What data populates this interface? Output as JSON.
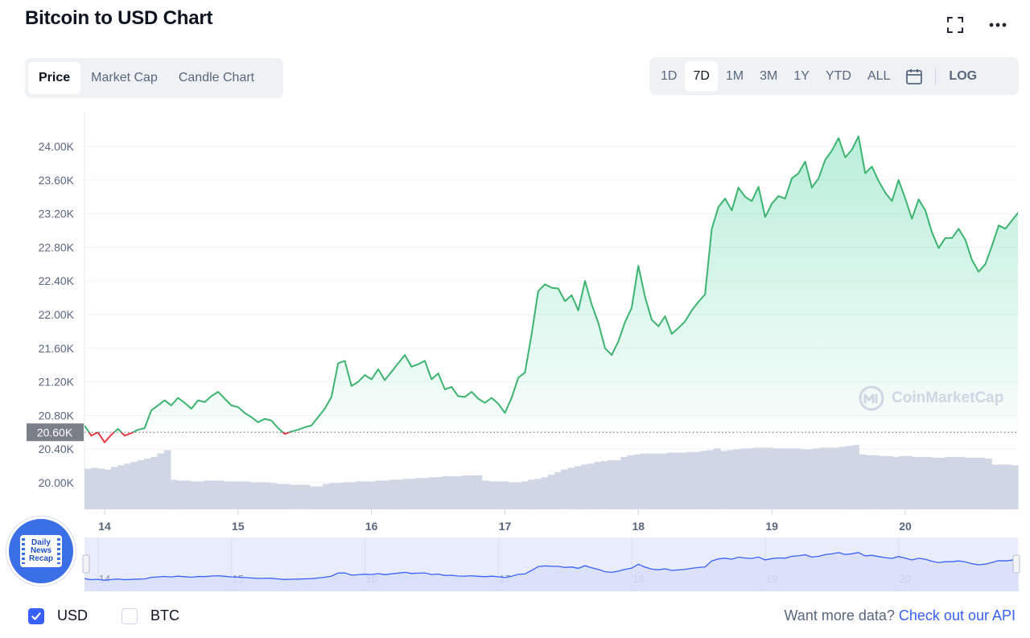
{
  "header": {
    "title": "Bitcoin to USD Chart"
  },
  "tabs": [
    {
      "label": "Price",
      "active": true
    },
    {
      "label": "Market Cap",
      "active": false
    },
    {
      "label": "Candle Chart",
      "active": false
    }
  ],
  "ranges": [
    {
      "label": "1D",
      "active": false
    },
    {
      "label": "7D",
      "active": true
    },
    {
      "label": "1M",
      "active": false
    },
    {
      "label": "3M",
      "active": false
    },
    {
      "label": "1Y",
      "active": false
    },
    {
      "label": "YTD",
      "active": false
    },
    {
      "label": "ALL",
      "active": false
    }
  ],
  "log_label": "LOG",
  "watermark": "CoinMarketCap",
  "badge": {
    "lines": [
      "Daily",
      "News",
      "Recap"
    ]
  },
  "currency": [
    {
      "label": "USD",
      "checked": true
    },
    {
      "label": "BTC",
      "checked": false
    }
  ],
  "api": {
    "text": "Want more data?",
    "link": "Check out our API"
  },
  "colors": {
    "up": "#16c784",
    "up_line": "#3cb46e",
    "down": "#ea3943",
    "volume": "#cfd6e4",
    "navigator_line": "#3861fb",
    "navigator_fill": "#e8ecfb"
  },
  "chart_data": {
    "type": "line",
    "title": "Bitcoin to USD Chart",
    "xlabel": "",
    "ylabel": "",
    "x_ticks": [
      "14",
      "15",
      "16",
      "17",
      "18",
      "19",
      "20"
    ],
    "y_ticks": [
      "20.00K",
      "20.40K",
      "20.80K",
      "21.20K",
      "21.60K",
      "22.00K",
      "22.40K",
      "22.80K",
      "23.20K",
      "23.60K",
      "24.00K"
    ],
    "ylim": [
      19600,
      24400
    ],
    "xlim": [
      13.85,
      20.85
    ],
    "reference_price": 20600,
    "reference_label": "20.60K",
    "grid": true,
    "series": [
      {
        "type": "line",
        "x": [
          13.85,
          13.9,
          13.95,
          14.0,
          14.05,
          14.1,
          14.15,
          14.2,
          14.25,
          14.3,
          14.35,
          14.4,
          14.45,
          14.5,
          14.55,
          14.6,
          14.65,
          14.7,
          14.75,
          14.8,
          14.85,
          14.9,
          14.95,
          15.0,
          15.05,
          15.1,
          15.15,
          15.2,
          15.25,
          15.3,
          15.35,
          15.4,
          15.45,
          15.5,
          15.55,
          15.6,
          15.65,
          15.7,
          15.75,
          15.8,
          15.85,
          15.9,
          15.95,
          16.0,
          16.05,
          16.1,
          16.15,
          16.2,
          16.25,
          16.3,
          16.35,
          16.4,
          16.45,
          16.5,
          16.55,
          16.6,
          16.65,
          16.7,
          16.75,
          16.8,
          16.85,
          16.9,
          16.95,
          17.0,
          17.05,
          17.1,
          17.15,
          17.2,
          17.25,
          17.3,
          17.35,
          17.4,
          17.45,
          17.5,
          17.55,
          17.6,
          17.65,
          17.7,
          17.75,
          17.8,
          17.85,
          17.9,
          17.95,
          18.0,
          18.05,
          18.1,
          18.15,
          18.2,
          18.25,
          18.3,
          18.35,
          18.4,
          18.45,
          18.5,
          18.55,
          18.6,
          18.65,
          18.7,
          18.75,
          18.8,
          18.85,
          18.9,
          18.95,
          19.0,
          19.05,
          19.1,
          19.15,
          19.2,
          19.25,
          19.3,
          19.35,
          19.4,
          19.45,
          19.5,
          19.55,
          19.6,
          19.65,
          19.7,
          19.75,
          19.8,
          19.85,
          19.9,
          19.95,
          20.0,
          20.05,
          20.1,
          20.15,
          20.2,
          20.25,
          20.3,
          20.35,
          20.4,
          20.45,
          20.5,
          20.55,
          20.6,
          20.65,
          20.7,
          20.75,
          20.8,
          20.85
        ],
        "y": [
          20680,
          20560,
          20600,
          20480,
          20570,
          20640,
          20560,
          20590,
          20630,
          20650,
          20860,
          20920,
          20980,
          20920,
          21010,
          20950,
          20880,
          20980,
          20960,
          21030,
          21080,
          21000,
          20920,
          20900,
          20830,
          20780,
          20720,
          20760,
          20740,
          20650,
          20580,
          20610,
          20630,
          20660,
          20680,
          20780,
          20880,
          21020,
          21420,
          21450,
          21150,
          21200,
          21280,
          21230,
          21350,
          21220,
          21320,
          21420,
          21520,
          21380,
          21410,
          21450,
          21230,
          21300,
          21110,
          21140,
          21030,
          21020,
          21080,
          21000,
          20950,
          21010,
          20940,
          20830,
          21010,
          21250,
          21310,
          21770,
          22280,
          22360,
          22320,
          22310,
          22160,
          22230,
          22050,
          22400,
          22120,
          21900,
          21600,
          21520,
          21680,
          21910,
          22080,
          22580,
          22210,
          21940,
          21860,
          21980,
          21770,
          21840,
          21920,
          22050,
          22150,
          22240,
          23020,
          23280,
          23380,
          23240,
          23510,
          23400,
          23350,
          23520,
          23160,
          23320,
          23410,
          23380,
          23620,
          23680,
          23820,
          23510,
          23620,
          23840,
          23950,
          24100,
          23870,
          23960,
          24120,
          23680,
          23760,
          23590,
          23450,
          23350,
          23600,
          23380,
          23140,
          23370,
          23240,
          22980,
          22790,
          22910,
          22910,
          23020,
          22890,
          22650,
          22510,
          22600,
          22820,
          23060,
          23020,
          23120,
          23220
        ]
      }
    ],
    "volume": [
      0.48,
      0.49,
      0.48,
      0.47,
      0.5,
      0.52,
      0.54,
      0.56,
      0.58,
      0.6,
      0.62,
      0.66,
      0.7,
      0.35,
      0.34,
      0.34,
      0.33,
      0.33,
      0.34,
      0.34,
      0.34,
      0.33,
      0.33,
      0.33,
      0.33,
      0.32,
      0.32,
      0.32,
      0.31,
      0.3,
      0.3,
      0.29,
      0.29,
      0.29,
      0.27,
      0.27,
      0.3,
      0.31,
      0.31,
      0.32,
      0.32,
      0.33,
      0.33,
      0.33,
      0.34,
      0.34,
      0.35,
      0.35,
      0.36,
      0.36,
      0.37,
      0.37,
      0.38,
      0.38,
      0.39,
      0.39,
      0.39,
      0.4,
      0.4,
      0.4,
      0.34,
      0.33,
      0.33,
      0.33,
      0.32,
      0.32,
      0.33,
      0.35,
      0.36,
      0.38,
      0.41,
      0.44,
      0.47,
      0.49,
      0.51,
      0.53,
      0.54,
      0.56,
      0.57,
      0.58,
      0.58,
      0.62,
      0.64,
      0.65,
      0.66,
      0.66,
      0.66,
      0.66,
      0.67,
      0.67,
      0.67,
      0.68,
      0.68,
      0.69,
      0.7,
      0.72,
      0.69,
      0.7,
      0.71,
      0.72,
      0.72,
      0.73,
      0.73,
      0.73,
      0.72,
      0.72,
      0.72,
      0.72,
      0.71,
      0.71,
      0.72,
      0.73,
      0.73,
      0.73,
      0.74,
      0.75,
      0.76,
      0.65,
      0.64,
      0.64,
      0.63,
      0.63,
      0.62,
      0.63,
      0.63,
      0.62,
      0.62,
      0.62,
      0.61,
      0.61,
      0.62,
      0.62,
      0.62,
      0.61,
      0.61,
      0.61,
      0.6,
      0.53,
      0.53,
      0.53,
      0.52
    ]
  }
}
